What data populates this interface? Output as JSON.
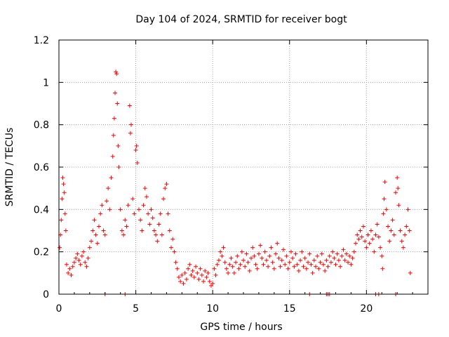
{
  "colors": {
    "series": "#ff0000",
    "grid": "#a0a0a0",
    "axis": "#000000"
  },
  "chart_data": {
    "type": "scatter",
    "title": "Day 104 of 2024, SRMTID for receiver bogt",
    "xlabel": "GPS time / hours",
    "ylabel": "SRMTID / TECUs",
    "xlim": [
      0,
      24
    ],
    "ylim": [
      0,
      1.2
    ],
    "grid": true,
    "marker": "+",
    "xticks": [
      0,
      5,
      10,
      15,
      20
    ],
    "xtick_labels": [
      "0",
      "5",
      "10",
      "15",
      "20"
    ],
    "yticks": [
      0,
      0.2,
      0.4,
      0.6,
      0.8,
      1.0,
      1.2
    ],
    "ytick_labels": [
      "0",
      "0.2",
      "0.4",
      "0.6",
      "0.8",
      "1",
      "1.2"
    ],
    "series": [
      {
        "name": "SRMTID",
        "points": [
          [
            0.05,
            0.22
          ],
          [
            0.1,
            0.28
          ],
          [
            0.15,
            0.35
          ],
          [
            0.2,
            0.45
          ],
          [
            0.25,
            0.55
          ],
          [
            0.3,
            0.52
          ],
          [
            0.35,
            0.48
          ],
          [
            0.4,
            0.38
          ],
          [
            0.45,
            0.3
          ],
          [
            0.5,
            0.14
          ],
          [
            0.6,
            0.1
          ],
          [
            0.7,
            0.12
          ],
          [
            0.8,
            0.09
          ],
          [
            0.9,
            0.13
          ],
          [
            1.0,
            0.15
          ],
          [
            1.1,
            0.17
          ],
          [
            1.2,
            0.19
          ],
          [
            1.3,
            0.16
          ],
          [
            1.4,
            0.14
          ],
          [
            1.5,
            0.18
          ],
          [
            1.6,
            0.2
          ],
          [
            1.7,
            0.15
          ],
          [
            1.8,
            0.13
          ],
          [
            1.9,
            0.17
          ],
          [
            2.0,
            0.22
          ],
          [
            2.1,
            0.25
          ],
          [
            2.2,
            0.3
          ],
          [
            2.3,
            0.35
          ],
          [
            2.4,
            0.28
          ],
          [
            2.5,
            0.24
          ],
          [
            2.6,
            0.32
          ],
          [
            2.7,
            0.38
          ],
          [
            2.8,
            0.42
          ],
          [
            2.9,
            0.3
          ],
          [
            3.0,
            0.28
          ],
          [
            3.1,
            0.44
          ],
          [
            3.2,
            0.5
          ],
          [
            3.3,
            0.4
          ],
          [
            3.4,
            0.55
          ],
          [
            3.5,
            0.65
          ],
          [
            3.55,
            0.75
          ],
          [
            3.6,
            0.83
          ],
          [
            3.65,
            0.95
          ],
          [
            3.7,
            1.05
          ],
          [
            3.75,
            1.04
          ],
          [
            3.8,
            0.9
          ],
          [
            3.85,
            0.7
          ],
          [
            3.9,
            0.6
          ],
          [
            4.0,
            0.4
          ],
          [
            4.1,
            0.3
          ],
          [
            4.2,
            0.28
          ],
          [
            4.3,
            0.35
          ],
          [
            4.4,
            0.32
          ],
          [
            4.5,
            0.42
          ],
          [
            4.6,
            0.89
          ],
          [
            4.65,
            0.76
          ],
          [
            4.7,
            0.8
          ],
          [
            4.8,
            0.45
          ],
          [
            4.9,
            0.38
          ],
          [
            5.0,
            0.68
          ],
          [
            5.05,
            0.7
          ],
          [
            5.1,
            0.62
          ],
          [
            5.2,
            0.4
          ],
          [
            5.3,
            0.35
          ],
          [
            5.4,
            0.3
          ],
          [
            5.5,
            0.42
          ],
          [
            5.6,
            0.5
          ],
          [
            5.7,
            0.46
          ],
          [
            5.8,
            0.38
          ],
          [
            5.9,
            0.33
          ],
          [
            6.0,
            0.4
          ],
          [
            6.1,
            0.36
          ],
          [
            6.2,
            0.3
          ],
          [
            6.3,
            0.28
          ],
          [
            6.4,
            0.25
          ],
          [
            6.5,
            0.33
          ],
          [
            6.6,
            0.38
          ],
          [
            6.7,
            0.28
          ],
          [
            6.8,
            0.45
          ],
          [
            6.9,
            0.5
          ],
          [
            7.0,
            0.52
          ],
          [
            7.1,
            0.38
          ],
          [
            7.2,
            0.3
          ],
          [
            7.3,
            0.22
          ],
          [
            7.4,
            0.26
          ],
          [
            7.5,
            0.2
          ],
          [
            7.6,
            0.15
          ],
          [
            7.7,
            0.12
          ],
          [
            7.8,
            0.08
          ],
          [
            7.9,
            0.06
          ],
          [
            8.0,
            0.09
          ],
          [
            8.1,
            0.05
          ],
          [
            8.2,
            0.1
          ],
          [
            8.3,
            0.07
          ],
          [
            8.4,
            0.12
          ],
          [
            8.5,
            0.14
          ],
          [
            8.6,
            0.09
          ],
          [
            8.7,
            0.11
          ],
          [
            8.8,
            0.08
          ],
          [
            8.9,
            0.13
          ],
          [
            9.0,
            0.1
          ],
          [
            9.1,
            0.07
          ],
          [
            9.2,
            0.12
          ],
          [
            9.3,
            0.09
          ],
          [
            9.4,
            0.06
          ],
          [
            9.5,
            0.11
          ],
          [
            9.6,
            0.08
          ],
          [
            9.7,
            0.1
          ],
          [
            9.8,
            0.06
          ],
          [
            9.9,
            0.04
          ],
          [
            10.0,
            0.05
          ],
          [
            10.1,
            0.12
          ],
          [
            10.2,
            0.09
          ],
          [
            10.3,
            0.14
          ],
          [
            10.4,
            0.16
          ],
          [
            10.5,
            0.2
          ],
          [
            10.6,
            0.18
          ],
          [
            10.7,
            0.22
          ],
          [
            10.8,
            0.15
          ],
          [
            10.9,
            0.12
          ],
          [
            11.0,
            0.1
          ],
          [
            11.1,
            0.14
          ],
          [
            11.2,
            0.17
          ],
          [
            11.3,
            0.13
          ],
          [
            11.4,
            0.1
          ],
          [
            11.5,
            0.15
          ],
          [
            11.6,
            0.18
          ],
          [
            11.7,
            0.12
          ],
          [
            11.8,
            0.14
          ],
          [
            11.9,
            0.2
          ],
          [
            12.0,
            0.16
          ],
          [
            12.1,
            0.13
          ],
          [
            12.2,
            0.19
          ],
          [
            12.3,
            0.15
          ],
          [
            12.4,
            0.11
          ],
          [
            12.5,
            0.17
          ],
          [
            12.6,
            0.22
          ],
          [
            12.7,
            0.18
          ],
          [
            12.8,
            0.14
          ],
          [
            12.9,
            0.12
          ],
          [
            13.0,
            0.19
          ],
          [
            13.1,
            0.23
          ],
          [
            13.2,
            0.17
          ],
          [
            13.3,
            0.14
          ],
          [
            13.4,
            0.2
          ],
          [
            13.5,
            0.16
          ],
          [
            13.6,
            0.13
          ],
          [
            13.7,
            0.18
          ],
          [
            13.8,
            0.22
          ],
          [
            13.9,
            0.15
          ],
          [
            14.0,
            0.12
          ],
          [
            14.1,
            0.19
          ],
          [
            14.2,
            0.24
          ],
          [
            14.3,
            0.17
          ],
          [
            14.4,
            0.13
          ],
          [
            14.5,
            0.16
          ],
          [
            14.6,
            0.21
          ],
          [
            14.7,
            0.14
          ],
          [
            14.8,
            0.18
          ],
          [
            14.9,
            0.12
          ],
          [
            15.0,
            0.15
          ],
          [
            15.1,
            0.2
          ],
          [
            15.2,
            0.17
          ],
          [
            15.3,
            0.13
          ],
          [
            15.4,
            0.19
          ],
          [
            15.5,
            0.14
          ],
          [
            15.6,
            0.11
          ],
          [
            15.7,
            0.16
          ],
          [
            15.8,
            0.2
          ],
          [
            15.9,
            0.13
          ],
          [
            16.0,
            0.17
          ],
          [
            16.1,
            0.12
          ],
          [
            16.2,
            0.15
          ],
          [
            16.3,
            0.19
          ],
          [
            16.4,
            0.14
          ],
          [
            16.5,
            0.1
          ],
          [
            16.6,
            0.16
          ],
          [
            16.7,
            0.13
          ],
          [
            16.8,
            0.18
          ],
          [
            16.9,
            0.12
          ],
          [
            17.0,
            0.15
          ],
          [
            17.1,
            0.19
          ],
          [
            17.2,
            0.14
          ],
          [
            17.3,
            0.11
          ],
          [
            17.4,
            0.16
          ],
          [
            17.5,
            0.13
          ],
          [
            17.6,
            0.18
          ],
          [
            17.7,
            0.15
          ],
          [
            17.8,
            0.2
          ],
          [
            17.9,
            0.17
          ],
          [
            18.0,
            0.14
          ],
          [
            18.1,
            0.19
          ],
          [
            18.2,
            0.16
          ],
          [
            18.3,
            0.13
          ],
          [
            18.4,
            0.18
          ],
          [
            18.5,
            0.21
          ],
          [
            18.6,
            0.16
          ],
          [
            18.7,
            0.19
          ],
          [
            18.8,
            0.15
          ],
          [
            18.9,
            0.18
          ],
          [
            19.0,
            0.14
          ],
          [
            19.1,
            0.17
          ],
          [
            19.2,
            0.2
          ],
          [
            19.3,
            0.24
          ],
          [
            19.4,
            0.28
          ],
          [
            19.5,
            0.26
          ],
          [
            19.6,
            0.3
          ],
          [
            19.7,
            0.27
          ],
          [
            19.8,
            0.32
          ],
          [
            19.9,
            0.25
          ],
          [
            20.0,
            0.22
          ],
          [
            20.1,
            0.28
          ],
          [
            20.2,
            0.24
          ],
          [
            20.3,
            0.3
          ],
          [
            20.4,
            0.26
          ],
          [
            20.5,
            0.2
          ],
          [
            20.6,
            0.28
          ],
          [
            20.7,
            0.33
          ],
          [
            20.8,
            0.27
          ],
          [
            20.9,
            0.22
          ],
          [
            21.0,
            0.18
          ],
          [
            21.05,
            0.12
          ],
          [
            21.1,
            0.38
          ],
          [
            21.15,
            0.45
          ],
          [
            21.2,
            0.53
          ],
          [
            21.3,
            0.4
          ],
          [
            21.4,
            0.32
          ],
          [
            21.5,
            0.25
          ],
          [
            21.6,
            0.3
          ],
          [
            21.7,
            0.35
          ],
          [
            21.8,
            0.28
          ],
          [
            21.9,
            0.48
          ],
          [
            22.0,
            0.55
          ],
          [
            22.05,
            0.5
          ],
          [
            22.1,
            0.42
          ],
          [
            22.2,
            0.3
          ],
          [
            22.3,
            0.25
          ],
          [
            22.4,
            0.22
          ],
          [
            22.5,
            0.28
          ],
          [
            22.6,
            0.32
          ],
          [
            22.7,
            0.4
          ],
          [
            22.8,
            0.3
          ],
          [
            22.85,
            0.1
          ]
        ]
      }
    ],
    "zero_points_x": [
      3.0,
      4.3,
      16.3,
      17.4,
      17.5,
      17.6,
      20.6,
      20.8,
      21.9
    ]
  }
}
